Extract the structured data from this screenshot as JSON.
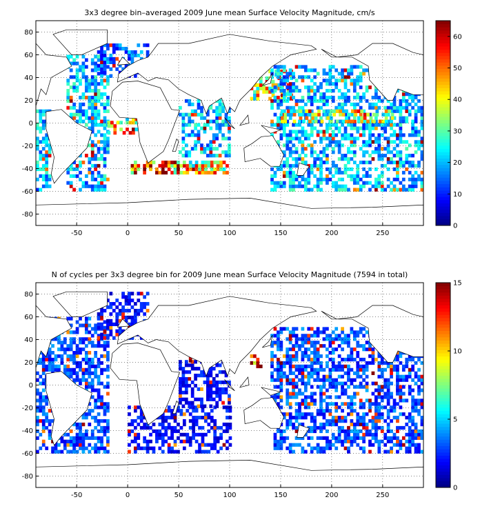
{
  "chart_data": [
    {
      "type": "heatmap",
      "title": "3x3 degree bin–averaged 2009 June mean Surface Velocity Magnitude, cm/s",
      "xlabel": "",
      "ylabel": "",
      "xlim": [
        -90,
        290
      ],
      "ylim": [
        -90,
        90
      ],
      "xticks": [
        -50,
        0,
        50,
        100,
        150,
        200,
        250
      ],
      "yticks": [
        -80,
        -60,
        -40,
        -20,
        0,
        20,
        40,
        60,
        80
      ],
      "bin_size_deg": 3,
      "grid": true,
      "colorbar": {
        "min": 0,
        "max": 65,
        "ticks": [
          0,
          10,
          20,
          30,
          40,
          50,
          60
        ],
        "colormap": "jet",
        "placement": "right"
      },
      "regions": [
        {
          "x": [
            -90,
            -75
          ],
          "y": [
            -60,
            10
          ],
          "value": 20
        },
        {
          "x": [
            -60,
            -20
          ],
          "y": [
            -60,
            60
          ],
          "value": 20
        },
        {
          "x": [
            -20,
            10
          ],
          "y": [
            -10,
            5
          ],
          "value": 40
        },
        {
          "x": [
            0,
            60
          ],
          "y": [
            -45,
            -35
          ],
          "value": 50
        },
        {
          "x": [
            60,
            100
          ],
          "y": [
            -45,
            -35
          ],
          "value": 40
        },
        {
          "x": [
            50,
            100
          ],
          "y": [
            -30,
            20
          ],
          "value": 20
        },
        {
          "x": [
            120,
            160
          ],
          "y": [
            20,
            45
          ],
          "value": 40
        },
        {
          "x": [
            140,
            290
          ],
          "y": [
            -60,
            50
          ],
          "value": 20
        },
        {
          "x": [
            150,
            260
          ],
          "y": [
            0,
            10
          ],
          "value": 35
        },
        {
          "x": [
            -30,
            20
          ],
          "y": [
            40,
            70
          ],
          "value": 15
        }
      ]
    },
    {
      "type": "heatmap",
      "title": "N of cycles per 3x3 degree bin for 2009 June mean Surface Velocity Magnitude (7594 in total)",
      "xlabel": "",
      "ylabel": "",
      "xlim": [
        -90,
        290
      ],
      "ylim": [
        -90,
        90
      ],
      "xticks": [
        -50,
        0,
        50,
        100,
        150,
        200,
        250
      ],
      "yticks": [
        -80,
        -60,
        -40,
        -20,
        0,
        20,
        40,
        60,
        80
      ],
      "bin_size_deg": 3,
      "grid": true,
      "colorbar": {
        "min": 0,
        "max": 15,
        "ticks": [
          0,
          5,
          10,
          15
        ],
        "colormap": "jet",
        "placement": "right"
      },
      "regions": [
        {
          "x": [
            -90,
            -20
          ],
          "y": [
            -60,
            60
          ],
          "value": 3
        },
        {
          "x": [
            0,
            100
          ],
          "y": [
            -60,
            -20
          ],
          "value": 2
        },
        {
          "x": [
            50,
            100
          ],
          "y": [
            -20,
            20
          ],
          "value": 2
        },
        {
          "x": [
            60,
            65
          ],
          "y": [
            20,
            25
          ],
          "value": 13
        },
        {
          "x": [
            120,
            130
          ],
          "y": [
            15,
            25
          ],
          "value": 12
        },
        {
          "x": [
            140,
            145
          ],
          "y": [
            35,
            40
          ],
          "value": 14
        },
        {
          "x": [
            140,
            290
          ],
          "y": [
            -60,
            50
          ],
          "value": 3
        },
        {
          "x": [
            -30,
            20
          ],
          "y": [
            40,
            80
          ],
          "value": 2
        }
      ]
    }
  ]
}
